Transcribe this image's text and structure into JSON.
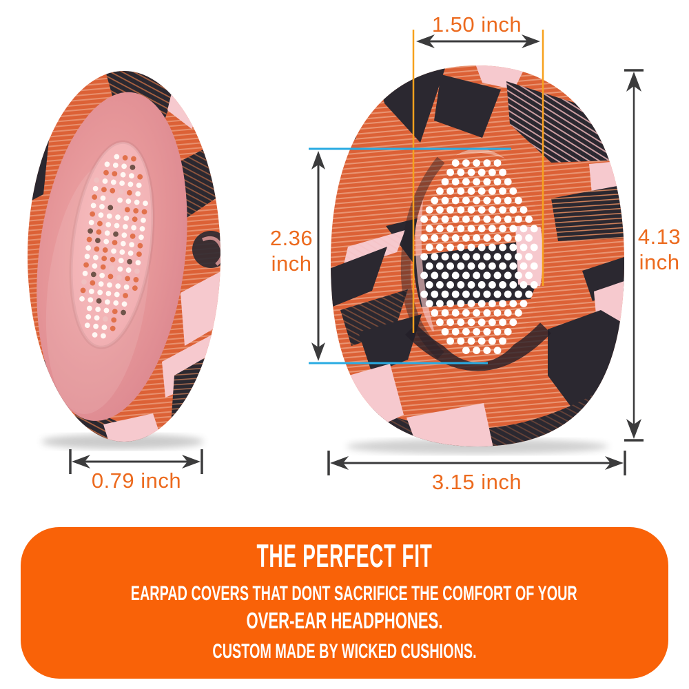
{
  "measurements": {
    "inner_width": {
      "label": "1.50 inch",
      "value": "1.50",
      "unit": "inch"
    },
    "inner_height": {
      "label": "2.36 inch",
      "value": "2.36",
      "unit": "inch"
    },
    "pad_height": {
      "label": "4.13 inch",
      "value": "4.13",
      "unit": "inch"
    },
    "pad_thickness": {
      "label": "0.79 inch",
      "value": "0.79",
      "unit": "inch"
    },
    "pad_width": {
      "label": "3.15 inch",
      "value": "3.15",
      "unit": "inch"
    }
  },
  "banner": {
    "title": "THE PERFECT FIT",
    "subtitle_line1": "EARPAD COVERS THAT DONT SACRIFICE THE COMFORT OF YOUR",
    "subtitle_line2": "OVER-EAR HEADPHONES.",
    "subtitle_line3": "CUSTOM MADE BY WICKED CUSHIONS."
  },
  "colors": {
    "banner_orange": "#F96208",
    "dimension_text_orange": "#EC6A1E",
    "guide_line_orange": "#F7A11D",
    "guide_line_cyan": "#29ABE2",
    "arrow_dark": "#3B3B3C",
    "pad_orange": "#DC6136",
    "pad_black": "#2B2830",
    "pad_pink": "#F6C9CE",
    "cushion_rose": "#E29297",
    "perforated_plate_pink": "#F3B4B6",
    "dot_white": "#FFFFFF",
    "dot_orange": "#E1714B"
  }
}
